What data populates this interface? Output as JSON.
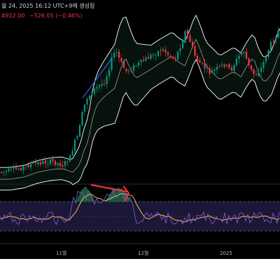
{
  "header": {
    "date_text": "월 24, 2025 16:12 UTC+9에 생성됨",
    "price_text": "A912.00",
    "change_text": "−526.05 (−0.46%)"
  },
  "xaxis": {
    "labels": [
      "11월",
      "12월",
      "2025"
    ]
  },
  "colors": {
    "background": "#000000",
    "up": "#089981",
    "down": "#f23645",
    "bollinger": "#ffffff",
    "rsi": "#7e57c2",
    "rsi_ma": "#f0c04a",
    "annotation": "#e53935"
  },
  "chart_data": {
    "type": "candlestick",
    "price_panel": {
      "indicator": "bollinger-bands",
      "trend": "strong uptrend from October into December followed by sideways consolidation with a late rise"
    },
    "rsi_panel": {
      "indicator": "rsi",
      "annotation": "red down arrow marking bearish divergence near the mid-November peak"
    }
  }
}
